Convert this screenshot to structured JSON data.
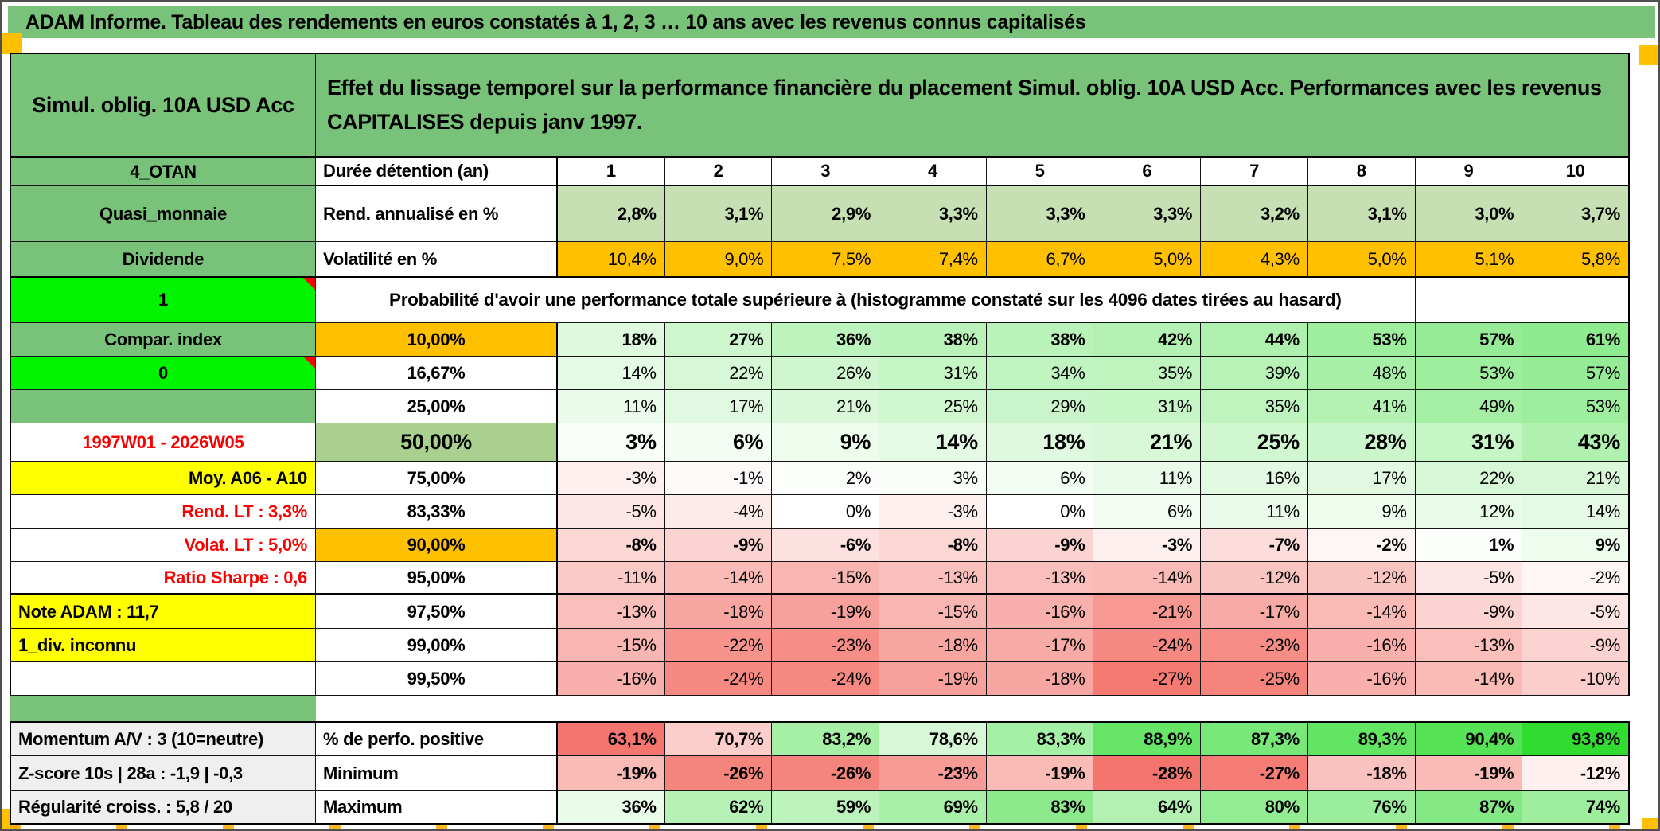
{
  "page": {
    "title": "ADAM Informe. Tableau des rendements en euros constatés à 1, 2, 3 … 10 ans avec les revenus connus capitalisés"
  },
  "header": {
    "instrument": "Simul. oblig. 10A USD Acc",
    "description": "Effet du lissage temporel sur la performance financière du placement Simul. oblig. 10A USD Acc. Performances avec les revenus CAPITALISES depuis janv 1997."
  },
  "table": {
    "corner_label": "4_OTAN",
    "duration_label": "Durée détention (an)",
    "columns": [
      "1",
      "2",
      "3",
      "4",
      "5",
      "6",
      "7",
      "8",
      "9",
      "10"
    ],
    "annual_return": {
      "side": "Quasi_monnaie",
      "label": "Rend. annualisé en %",
      "values": [
        "2,8%",
        "3,1%",
        "2,9%",
        "3,3%",
        "3,3%",
        "3,3%",
        "3,2%",
        "3,1%",
        "3,0%",
        "3,7%"
      ]
    },
    "volatility": {
      "side": "Dividende",
      "label": "Volatilité en %",
      "values": [
        "10,4%",
        "9,0%",
        "7,5%",
        "7,4%",
        "6,7%",
        "5,0%",
        "4,3%",
        "5,0%",
        "5,1%",
        "5,8%"
      ]
    },
    "probability_banner": {
      "side": "1",
      "text": "Probabilité d'avoir une performance totale supérieure à (histogramme constaté sur les 4096 dates tirées au hasard)"
    },
    "probability_rows": [
      {
        "side": "Compar. index",
        "side_style": "green",
        "threshold": "10,00%",
        "threshold_style": "orange",
        "emphasis": "bold",
        "values": [
          "18%",
          "27%",
          "36%",
          "38%",
          "38%",
          "42%",
          "44%",
          "53%",
          "57%",
          "61%"
        ]
      },
      {
        "side": "0",
        "side_style": "bright",
        "marker": true,
        "threshold": "16,67%",
        "threshold_style": "white",
        "emphasis": "none",
        "values": [
          "14%",
          "22%",
          "26%",
          "31%",
          "34%",
          "35%",
          "39%",
          "48%",
          "53%",
          "57%"
        ]
      },
      {
        "side": "",
        "side_style": "green",
        "threshold": "25,00%",
        "threshold_style": "white",
        "emphasis": "none",
        "values": [
          "11%",
          "17%",
          "21%",
          "25%",
          "29%",
          "31%",
          "35%",
          "41%",
          "49%",
          "53%"
        ]
      },
      {
        "side": "1997W01 - 2026W05",
        "side_style": "red-center",
        "threshold": "50,00%",
        "threshold_style": "mgreen-big",
        "emphasis": "big",
        "values": [
          "3%",
          "6%",
          "9%",
          "14%",
          "18%",
          "21%",
          "25%",
          "28%",
          "31%",
          "43%"
        ]
      },
      {
        "side": "Moy. A06 - A10",
        "side_style": "yellow-right",
        "threshold": "75,00%",
        "threshold_style": "white",
        "emphasis": "none",
        "values": [
          "-3%",
          "-1%",
          "2%",
          "3%",
          "6%",
          "11%",
          "16%",
          "17%",
          "22%",
          "21%"
        ]
      },
      {
        "side": "Rend. LT :   3,3%",
        "side_style": "red-right",
        "threshold": "83,33%",
        "threshold_style": "white",
        "emphasis": "none",
        "values": [
          "-5%",
          "-4%",
          "0%",
          "-3%",
          "0%",
          "6%",
          "11%",
          "9%",
          "12%",
          "14%"
        ]
      },
      {
        "side": "Volat. LT :   5,0%",
        "side_style": "red-right",
        "threshold": "90,00%",
        "threshold_style": "orange",
        "emphasis": "bold",
        "values": [
          "-8%",
          "-9%",
          "-6%",
          "-8%",
          "-9%",
          "-3%",
          "-7%",
          "-2%",
          "1%",
          "9%"
        ]
      },
      {
        "side": "Ratio Sharpe :   0,6",
        "side_style": "red-right",
        "threshold": "95,00%",
        "threshold_style": "white",
        "emphasis": "none",
        "thick_bottom": true,
        "values": [
          "-11%",
          "-14%",
          "-15%",
          "-13%",
          "-13%",
          "-14%",
          "-12%",
          "-12%",
          "-5%",
          "-2%"
        ]
      },
      {
        "side": "Note ADAM : 11,7",
        "side_style": "yellow-left",
        "threshold": "97,50%",
        "threshold_style": "white",
        "emphasis": "none",
        "values": [
          "-13%",
          "-18%",
          "-19%",
          "-15%",
          "-16%",
          "-21%",
          "-17%",
          "-14%",
          "-9%",
          "-5%"
        ]
      },
      {
        "side": "1_div. inconnu",
        "side_style": "yellow-left",
        "threshold": "99,00%",
        "threshold_style": "white",
        "emphasis": "none",
        "values": [
          "-15%",
          "-22%",
          "-23%",
          "-18%",
          "-17%",
          "-24%",
          "-23%",
          "-16%",
          "-13%",
          "-9%"
        ]
      },
      {
        "side": "",
        "side_style": "white",
        "threshold": "99,50%",
        "threshold_style": "white",
        "emphasis": "none",
        "values": [
          "-16%",
          "-24%",
          "-24%",
          "-19%",
          "-18%",
          "-27%",
          "-25%",
          "-16%",
          "-14%",
          "-10%"
        ]
      }
    ],
    "summary_rows": [
      {
        "side": "Momentum A/V : 3 (10=neutre)",
        "label": "% de perfo. positive",
        "scale": "perfo",
        "values": [
          "63,1%",
          "70,7%",
          "83,2%",
          "78,6%",
          "83,3%",
          "88,9%",
          "87,3%",
          "89,3%",
          "90,4%",
          "93,8%"
        ]
      },
      {
        "side": "Z-score 10s | 28a : -1,9 | -0,3",
        "label": "Minimum",
        "scale": "minimum",
        "values": [
          "-19%",
          "-26%",
          "-26%",
          "-23%",
          "-19%",
          "-28%",
          "-27%",
          "-18%",
          "-19%",
          "-12%"
        ]
      },
      {
        "side": "Régularité croiss. : 5,8 / 20",
        "label": "Maximum",
        "scale": "maximum",
        "values": [
          "36%",
          "62%",
          "59%",
          "69%",
          "83%",
          "64%",
          "80%",
          "76%",
          "87%",
          "74%"
        ]
      }
    ]
  },
  "colors": {
    "band_green": "#79c279",
    "bright_green": "#00f400",
    "orange": "#ffc000",
    "yellow": "#ffff00",
    "light_green": "#c6e0b4",
    "medium_green": "#a9d08e",
    "scale_pos_green": "#7ee87e",
    "scale_neg_red": "#f4756d",
    "scale_vivid_green": "#2edc2e",
    "red_text": "#fb0000",
    "gray_label": "#efefef",
    "print_marker_orange": "#ffa900"
  }
}
